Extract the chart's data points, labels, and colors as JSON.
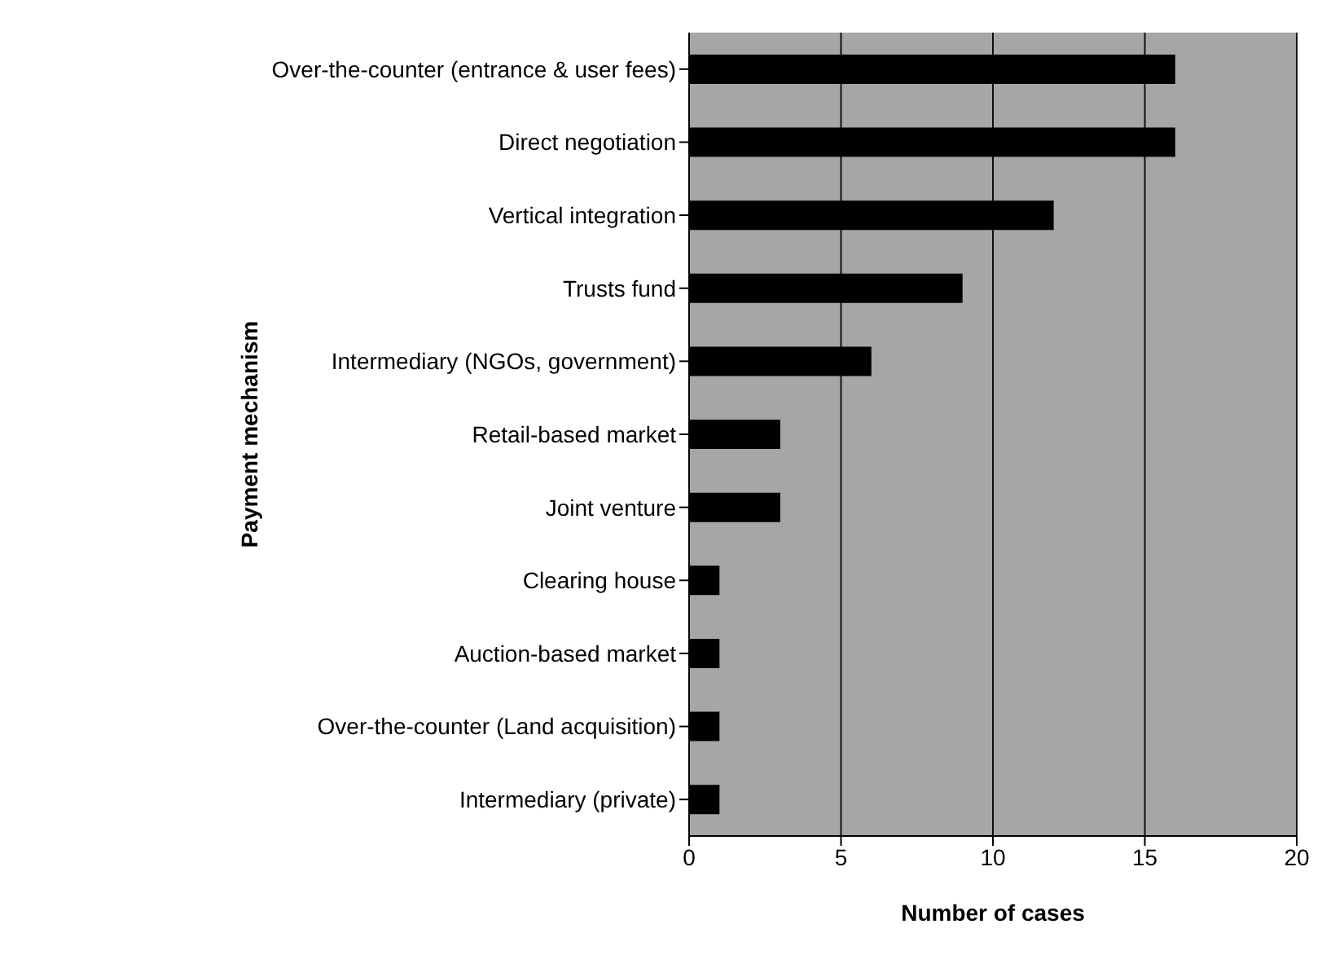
{
  "chart_data": {
    "type": "bar",
    "orientation": "horizontal",
    "xlabel": "Number of cases",
    "ylabel": "Payment mechanism",
    "categories": [
      "Over-the-counter (entrance & user fees)",
      "Direct negotiation",
      "Vertical integration",
      "Trusts fund",
      "Intermediary (NGOs, government)",
      "Retail-based market",
      "Joint venture",
      "Clearing house",
      "Auction-based market",
      "Over-the-counter (Land acquisition)",
      "Intermediary (private)"
    ],
    "values": [
      16,
      16,
      12,
      9,
      6,
      3,
      3,
      1,
      1,
      1,
      1
    ],
    "color": "#000000",
    "xlim": [
      0,
      20
    ],
    "xticks": [
      0,
      5,
      10,
      15,
      20
    ],
    "grid": "x"
  }
}
